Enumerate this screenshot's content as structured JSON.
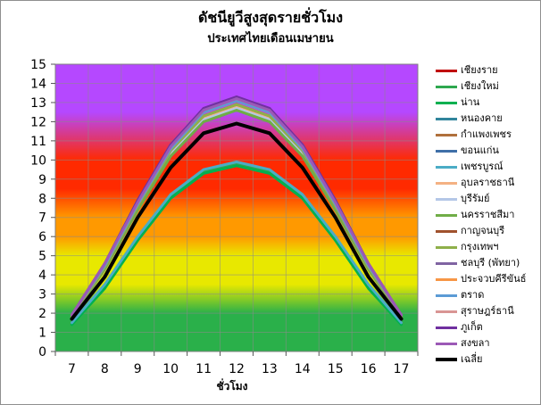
{
  "title": "ดัชนียูวีสูงสุดรายชั่วโมง",
  "subtitle": "ประเทศไทยเดือนเมษายน",
  "chart_data": {
    "type": "line",
    "x": [
      7,
      8,
      9,
      10,
      11,
      12,
      13,
      14,
      15,
      16,
      17
    ],
    "xlabel": "ชั่วโมง",
    "ylabel": "",
    "ylim": [
      0,
      15
    ],
    "yticks": [
      0,
      1,
      2,
      3,
      4,
      5,
      6,
      7,
      8,
      9,
      10,
      11,
      12,
      13,
      14,
      15
    ],
    "grid": true,
    "legend_position": "right",
    "background_bands": [
      {
        "from": 0,
        "to": 2,
        "color": "#2ab04a"
      },
      {
        "from": 2,
        "to": 5,
        "color": "#e8e800"
      },
      {
        "from": 5,
        "to": 7,
        "color": "#ff9900"
      },
      {
        "from": 7,
        "to": 10,
        "color": "#ff2a00"
      },
      {
        "from": 10,
        "to": 15,
        "color": "#b548ff"
      }
    ],
    "series": [
      {
        "name": "เชียงราย",
        "color": "#c00000",
        "values": [
          1.5,
          3.4,
          5.9,
          8.1,
          9.4,
          9.8,
          9.4,
          8.1,
          5.9,
          3.4,
          1.5
        ]
      },
      {
        "name": "เชียงใหม่",
        "color": "#2ea84f",
        "values": [
          1.5,
          3.4,
          5.9,
          8.1,
          9.4,
          9.8,
          9.4,
          8.1,
          5.9,
          3.4,
          1.5
        ]
      },
      {
        "name": "น่าน",
        "color": "#00b050",
        "values": [
          1.4,
          3.3,
          5.8,
          8.0,
          9.3,
          9.7,
          9.3,
          8.0,
          5.8,
          3.3,
          1.4
        ]
      },
      {
        "name": "หนองคาย",
        "color": "#31859c",
        "values": [
          1.8,
          4.3,
          7.4,
          10.2,
          12.0,
          12.6,
          12.0,
          10.2,
          7.4,
          4.3,
          1.8
        ]
      },
      {
        "name": "กำแพงเพชร",
        "color": "#b0703c",
        "values": [
          1.8,
          4.4,
          7.5,
          10.4,
          12.2,
          12.8,
          12.2,
          10.4,
          7.5,
          4.4,
          1.8
        ]
      },
      {
        "name": "ขอนแก่น",
        "color": "#3f6fa8",
        "values": [
          1.8,
          4.3,
          7.4,
          10.3,
          12.1,
          12.7,
          12.1,
          10.3,
          7.4,
          4.3,
          1.8
        ]
      },
      {
        "name": "เพชรบูรณ์",
        "color": "#4bacc6",
        "values": [
          1.5,
          3.5,
          6.0,
          8.2,
          9.5,
          9.9,
          9.5,
          8.2,
          6.0,
          3.5,
          1.5
        ]
      },
      {
        "name": "อุบลราชธานี",
        "color": "#f4b183",
        "values": [
          1.8,
          4.4,
          7.5,
          10.4,
          12.2,
          12.8,
          12.2,
          10.4,
          7.5,
          4.4,
          1.8
        ]
      },
      {
        "name": "บุรีรัมย์",
        "color": "#b4c7e7",
        "values": [
          1.8,
          4.3,
          7.4,
          10.3,
          12.1,
          12.7,
          12.1,
          10.3,
          7.4,
          4.3,
          1.8
        ]
      },
      {
        "name": "นครราชสีมา",
        "color": "#70ad47",
        "values": [
          1.8,
          4.3,
          7.4,
          10.2,
          12.0,
          12.6,
          12.0,
          10.2,
          7.4,
          4.3,
          1.8
        ]
      },
      {
        "name": "กาญจนบุรี",
        "color": "#a0522d",
        "values": [
          1.8,
          4.4,
          7.6,
          10.5,
          12.3,
          12.9,
          12.3,
          10.5,
          7.6,
          4.4,
          1.8
        ]
      },
      {
        "name": "กรุงเทพฯ",
        "color": "#8fb04a",
        "values": [
          1.8,
          4.4,
          7.6,
          10.5,
          12.3,
          12.9,
          12.3,
          10.5,
          7.6,
          4.4,
          1.8
        ]
      },
      {
        "name": "ชลบุรี (พัทยา)",
        "color": "#8064a2",
        "values": [
          1.9,
          4.5,
          7.7,
          10.6,
          12.5,
          13.1,
          12.5,
          10.6,
          7.7,
          4.5,
          1.9
        ]
      },
      {
        "name": "ประจวบคีรีขันธ์",
        "color": "#f79646",
        "values": [
          1.9,
          4.5,
          7.7,
          10.6,
          12.5,
          13.1,
          12.5,
          10.6,
          7.7,
          4.5,
          1.9
        ]
      },
      {
        "name": "ตราด",
        "color": "#5b9bd5",
        "values": [
          1.9,
          4.5,
          7.7,
          10.6,
          12.5,
          13.1,
          12.5,
          10.6,
          7.7,
          4.5,
          1.9
        ]
      },
      {
        "name": "สุราษฎร์ธานี",
        "color": "#d99594",
        "values": [
          1.9,
          4.6,
          7.8,
          10.7,
          12.6,
          13.2,
          12.6,
          10.7,
          7.8,
          4.6,
          1.9
        ]
      },
      {
        "name": "ภูเก็ต",
        "color": "#7030a0",
        "values": [
          1.9,
          4.6,
          7.9,
          10.8,
          12.7,
          13.3,
          12.7,
          10.8,
          7.9,
          4.6,
          1.9
        ]
      },
      {
        "name": "สงขลา",
        "color": "#9b59b6",
        "values": [
          1.9,
          4.6,
          7.8,
          10.7,
          12.6,
          13.2,
          12.6,
          10.7,
          7.8,
          4.6,
          1.9
        ]
      },
      {
        "name": "เฉลี่ย",
        "color": "#000000",
        "values": [
          1.7,
          3.9,
          7.0,
          9.6,
          11.4,
          11.9,
          11.4,
          9.6,
          7.0,
          3.9,
          1.7
        ]
      }
    ]
  }
}
